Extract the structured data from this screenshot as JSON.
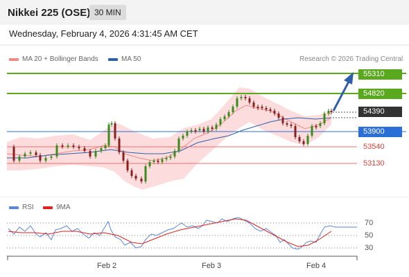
{
  "header": {
    "title": "Nikkei 225 (OSE)",
    "timeframe": "30 MIN"
  },
  "timestamp": "Wednesday, February 4, 2026 4:31:45 AM CET",
  "legend": {
    "ma20_bb": "MA 20 + Bollinger Bands",
    "ma20_color": "#f08a85",
    "ma50": "MA 50",
    "ma50_color": "#2f5fa8",
    "credit": "Research © 2026 Trading Central"
  },
  "levels": [
    {
      "label": "55310",
      "kind": "resistance",
      "color": "#5aa81e"
    },
    {
      "label": "54820",
      "kind": "resistance",
      "color": "#5aa81e"
    },
    {
      "label": "54390",
      "kind": "last",
      "color": "#333333"
    },
    {
      "label": "53900",
      "kind": "pivot",
      "color": "#2b6fd6"
    },
    {
      "label": "53540",
      "kind": "support",
      "color": "#e0413a"
    },
    {
      "label": "53130",
      "kind": "support",
      "color": "#e0413a"
    }
  ],
  "rsi_legend": {
    "rsi": "RSI",
    "rsi_color": "#5b86d6",
    "ma": "9MA",
    "ma_color": "#e01f1f"
  },
  "rsi_axis": [
    "70",
    "50",
    "30"
  ],
  "x_axis": [
    "Feb 2",
    "Feb 3",
    "Feb 4"
  ]
}
